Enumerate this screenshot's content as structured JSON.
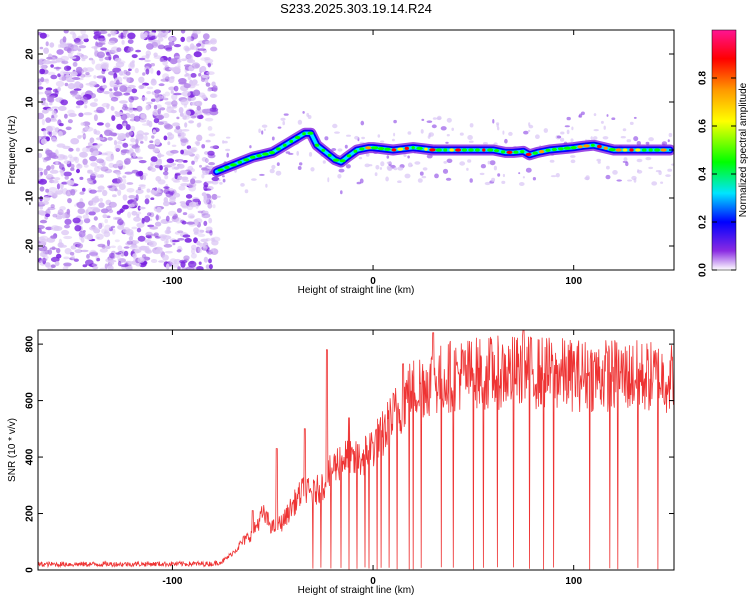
{
  "title": "S233.2025.303.19.14.R24",
  "chart_data": [
    {
      "type": "heatmap",
      "title": "S233.2025.303.19.14.R24",
      "xlabel": "Height of straight line (km)",
      "ylabel": "Frequency (Hz)",
      "xlim": [
        -167,
        150
      ],
      "ylim": [
        -25,
        25
      ],
      "x_ticks": [
        -100,
        0,
        100
      ],
      "y_ticks": [
        -20,
        -10,
        0,
        10,
        20
      ],
      "x_tick_labels": [
        "-100",
        "0",
        "100"
      ],
      "y_tick_labels": [
        "-20",
        "-10",
        "0",
        "10",
        "20"
      ],
      "noise_region_x": [
        -167,
        -78
      ],
      "ridge": {
        "x": [
          -78,
          -72,
          -66,
          -60,
          -55,
          -50,
          -46,
          -42,
          -38,
          -34,
          -31,
          -28,
          -25,
          -22,
          -19,
          -16,
          -13,
          -8,
          -2,
          0,
          10,
          20,
          30,
          40,
          50,
          60,
          66,
          70,
          75,
          78,
          82,
          88,
          95,
          100,
          105,
          110,
          115,
          120,
          130,
          140,
          148
        ],
        "y": [
          -4.5,
          -3.5,
          -2.5,
          -1.5,
          -1,
          -0.5,
          0.5,
          1.5,
          2.5,
          3.5,
          3.5,
          1,
          0,
          -1,
          -2,
          -2.5,
          -1.5,
          0,
          0.5,
          0.5,
          0,
          0.5,
          0,
          0,
          0,
          0,
          -0.5,
          -0.5,
          -0.3,
          -1,
          -0.5,
          0,
          0.3,
          0.5,
          0.8,
          1,
          0.5,
          0,
          0,
          0,
          0
        ]
      },
      "colorbar": {
        "label": "Normalized spectral amplitude",
        "range": [
          0,
          1
        ],
        "ticks": [
          0.0,
          0.2,
          0.4,
          0.6,
          0.8
        ],
        "tick_labels": [
          "0.0",
          "0.2",
          "0.4",
          "0.6",
          "0.8"
        ],
        "colors": [
          "#ffffff",
          "#8a2be2",
          "#0000ff",
          "#00e5ff",
          "#00ff00",
          "#ffff00",
          "#ff9900",
          "#ff0000",
          "#ff1493"
        ]
      }
    },
    {
      "type": "line",
      "xlabel": "Height of straight line (km)",
      "ylabel": "SNR (10 * v/v)",
      "xlim": [
        -167,
        150
      ],
      "ylim": [
        0,
        850
      ],
      "x_ticks": [
        -100,
        0,
        100
      ],
      "y_ticks": [
        0,
        200,
        400,
        600,
        800
      ],
      "x_tick_labels": [
        "-100",
        "0",
        "100"
      ],
      "y_tick_labels": [
        "0",
        "200",
        "400",
        "600",
        "800"
      ],
      "color": "#ee3333",
      "envelope": {
        "x": [
          -167,
          -80,
          -75,
          -70,
          -65,
          -60,
          -55,
          -50,
          -45,
          -40,
          -35,
          -30,
          -25,
          -20,
          -15,
          -10,
          -5,
          0,
          5,
          10,
          15,
          20,
          25,
          30,
          40,
          60,
          80,
          100,
          120,
          150
        ],
        "y": [
          20,
          22,
          30,
          60,
          100,
          130,
          200,
          150,
          170,
          230,
          280,
          270,
          300,
          360,
          400,
          380,
          400,
          440,
          480,
          540,
          600,
          640,
          660,
          670,
          690,
          700,
          700,
          690,
          690,
          680
        ]
      },
      "peaks": [
        {
          "x": -60,
          "y": 210
        },
        {
          "x": -48,
          "y": 430
        },
        {
          "x": -34,
          "y": 500
        },
        {
          "x": -23,
          "y": 780
        },
        {
          "x": -12,
          "y": 540
        },
        {
          "x": 15,
          "y": 730
        },
        {
          "x": 30,
          "y": 840
        },
        {
          "x": 75,
          "y": 850
        }
      ],
      "dropouts_x": [
        -30,
        -26,
        -21,
        -16,
        -12,
        -8,
        -4,
        -2,
        2,
        4,
        8,
        12,
        18,
        20,
        24,
        34,
        40,
        50,
        55,
        62,
        70,
        78,
        85,
        90,
        108,
        118,
        122,
        132,
        142
      ]
    }
  ]
}
